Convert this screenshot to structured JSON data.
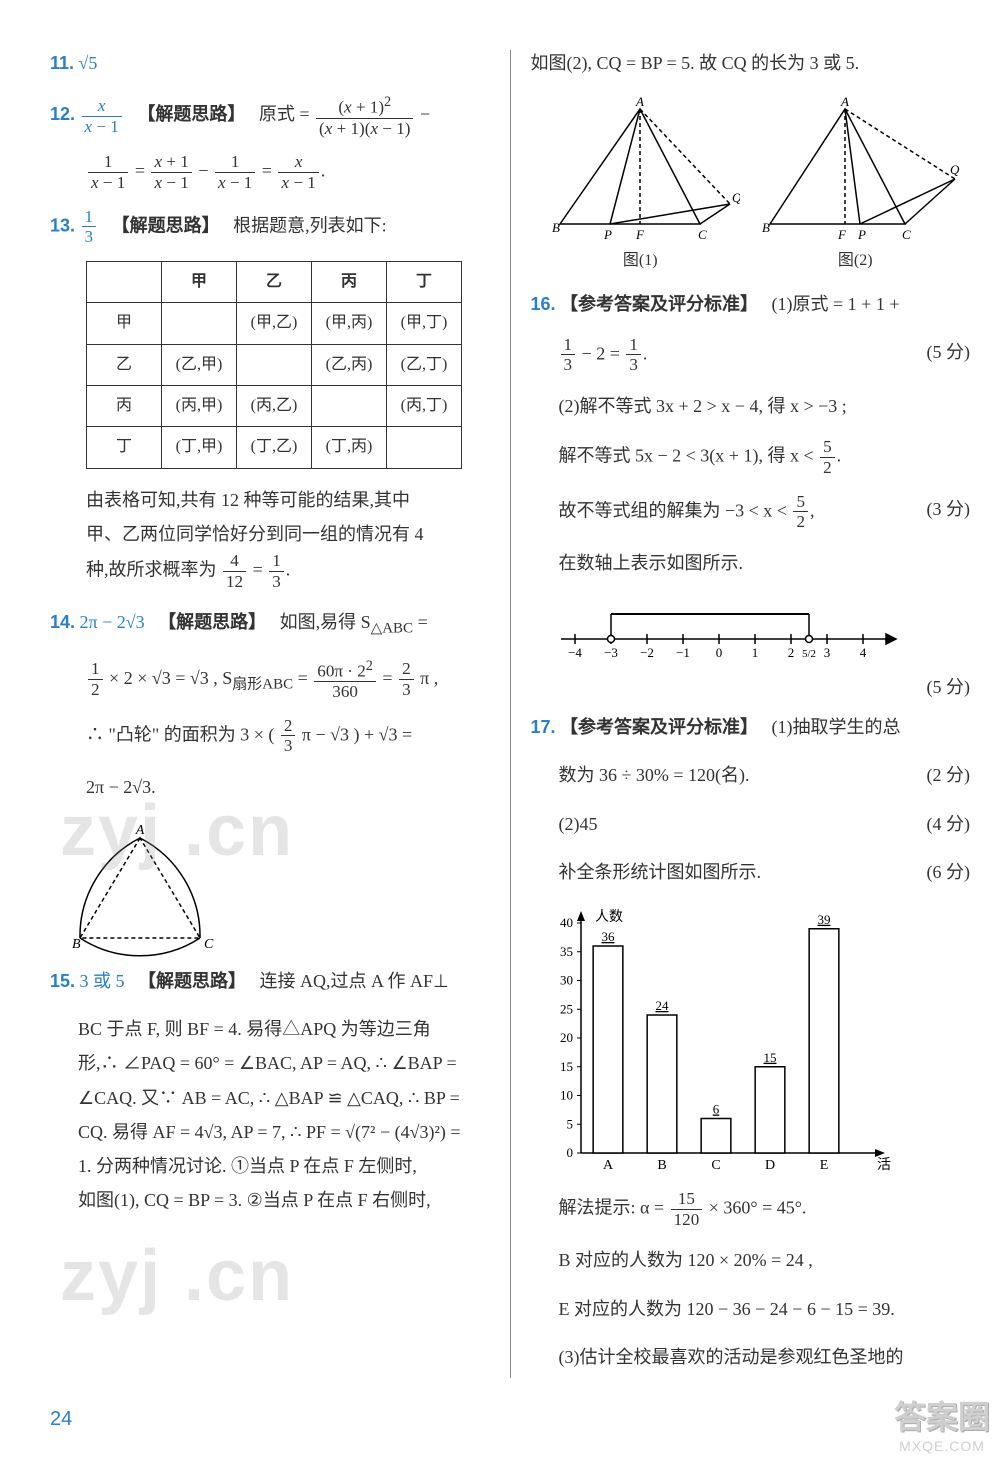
{
  "left": {
    "q11": {
      "num": "11.",
      "ans": "√5"
    },
    "q12": {
      "num": "12.",
      "ans_html": "x/(x−1)",
      "label": "【解题思路】",
      "text1": "原式 =",
      "text2": "−",
      "text3": "=",
      "text4": "−",
      "text5": "=",
      "endpunct": "."
    },
    "q13": {
      "num": "13.",
      "label": "【解题思路】",
      "text": "根据题意,列表如下:",
      "tbl": {
        "headers": [
          "",
          "甲",
          "乙",
          "丙",
          "丁"
        ],
        "rows": [
          [
            "甲",
            "",
            "(甲,乙)",
            "(甲,丙)",
            "(甲,丁)"
          ],
          [
            "乙",
            "(乙,甲)",
            "",
            "(乙,丙)",
            "(乙,丁)"
          ],
          [
            "丙",
            "(丙,甲)",
            "(丙,乙)",
            "",
            "(丙,丁)"
          ],
          [
            "丁",
            "(丁,甲)",
            "(丁,乙)",
            "(丁,丙)",
            ""
          ]
        ]
      },
      "expl1": "由表格可知,共有 12 种等可能的结果,其中",
      "expl2": "甲、乙两位同学恰好分到同一组的情况有 4",
      "expl3": "种,故所求概率为"
    },
    "q14": {
      "num": "14.",
      "ans": "2π − 2√3",
      "label": "【解题思路】",
      "t1": "如图,易得 S",
      "sub1": "△ABC",
      "t2": " =",
      "line2a": "× 2 × √3 = √3 , S",
      "sub2": "扇形ABC",
      "line2b": " = ",
      "line2c": " = ",
      "line2d": " π ,",
      "line3a": "∴ \"凸轮\" 的面积为 3 × (",
      "line3b": " π − √3 ) + √3 =",
      "line4": "2π − 2√3.",
      "figA": "A",
      "figB": "B",
      "figC": "C"
    },
    "q15": {
      "num": "15.",
      "ans": "3 或 5",
      "label": "【解题思路】",
      "l1": "连接 AQ,过点 A 作 AF⊥",
      "l2": "BC 于点 F, 则 BF = 4. 易得△APQ 为等边三角",
      "l3": "形,∴ ∠PAQ = 60° = ∠BAC, AP = AQ, ∴ ∠BAP =",
      "l4": "∠CAQ. 又∵ AB = AC, ∴ △BAP ≌ △CAQ, ∴ BP =",
      "l5": "CQ. 易得 AF = 4√3,  AP = 7, ∴ PF = √(7² − (4√3)²) =",
      "l6": "1. 分两种情况讨论. ①当点 P 在点 F 左侧时,",
      "l7": "如图(1), CQ = BP = 3. ②当点 P 在点 F 右侧时,"
    }
  },
  "right": {
    "topline": "如图(2), CQ = BP = 5. 故 CQ 的长为 3 或 5.",
    "fig": {
      "A": "A",
      "B": "B",
      "C": "C",
      "P": "P",
      "F": "F",
      "Q": "Q",
      "cap1": "图(1)",
      "cap2": "图(2)"
    },
    "q16": {
      "num": "16.",
      "label": "【参考答案及评分标准】",
      "p1a": "(1)原式 = 1 + 1 +",
      "p1b": " − 2 = ",
      "p1c": ".",
      "s1": "(5 分)",
      "p2": "(2)解不等式 3x + 2 > x − 4, 得 x > −3 ;",
      "p3a": "解不等式 5x − 2 < 3(x + 1), 得 x < ",
      "p3b": ".",
      "p4a": "故不等式组的解集为 −3 < x < ",
      "p4b": ",",
      "s2": "(3 分)",
      "p5": "在数轴上表示如图所示.",
      "ticks": [
        "−4",
        "−3",
        "−2",
        "−1",
        "0",
        "1",
        "2",
        "3",
        "4"
      ],
      "tick_extra": "5/2",
      "s3": "(5 分)"
    },
    "q17": {
      "num": "17.",
      "label": "【参考答案及评分标准】",
      "p1": "(1)抽取学生的总",
      "p2": "数为 36 ÷ 30% = 120(名).",
      "s1": "(2 分)",
      "p3": "(2)45",
      "s2": "(4 分)",
      "p4": "补全条形统计图如图所示.",
      "s3": "(6 分)",
      "chart": {
        "ylabel": "人数",
        "xlabel": "活动",
        "yticks": [
          0,
          5,
          10,
          15,
          20,
          25,
          30,
          35,
          40
        ],
        "cats": [
          "A",
          "B",
          "C",
          "D",
          "E"
        ],
        "vals": [
          36,
          24,
          6,
          15,
          39
        ],
        "val_labels": [
          "36",
          "24",
          "6",
          "15",
          "39"
        ],
        "bar_color": "#ffffff",
        "bar_border": "#000000",
        "axis_color": "#000000"
      },
      "p5a": "解法提示: α = ",
      "p5b": " × 360° = 45°.",
      "p6": "B 对应的人数为 120 × 20% = 24 ,",
      "p7": "E 对应的人数为 120 − 36 − 24 − 6 − 15 = 39.",
      "p8": "(3)估计全校最喜欢的活动是参观红色圣地的"
    }
  },
  "pagenum": "24",
  "watermarks": {
    "w1": "zyj .cn",
    "w2": "zyj .cn",
    "corner_top": "答案圈",
    "corner_bot": "MXQE.COM"
  }
}
